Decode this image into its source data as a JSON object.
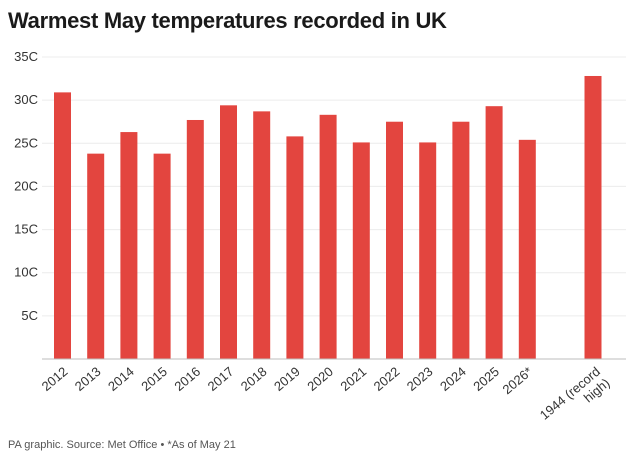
{
  "header": {
    "title": "Warmest May temperatures recorded in UK"
  },
  "footer": {
    "credit": "PA graphic. Source: Met Office • *As of May 21"
  },
  "colors": {
    "bar": "#e3453f",
    "grid": "#ececec",
    "axis": "#bdbdbd"
  },
  "chart_data": {
    "type": "bar",
    "categories": [
      "2012",
      "2013",
      "2014",
      "2015",
      "2016",
      "2017",
      "2018",
      "2019",
      "2020",
      "2021",
      "2022",
      "2023",
      "2024",
      "2025",
      "2026*",
      "1944 (record high)"
    ],
    "values": [
      30.9,
      23.8,
      26.3,
      23.8,
      27.7,
      29.4,
      28.7,
      25.8,
      28.3,
      25.1,
      27.5,
      25.1,
      27.5,
      29.3,
      25.4,
      32.8
    ],
    "yticks": [
      5,
      10,
      15,
      20,
      25,
      30,
      35
    ],
    "ytick_labels": [
      "5C",
      "10C",
      "15C",
      "20C",
      "25C",
      "30C",
      "35C"
    ],
    "ylim": [
      0,
      35
    ],
    "grid": true,
    "xlabel": "",
    "ylabel": ""
  }
}
